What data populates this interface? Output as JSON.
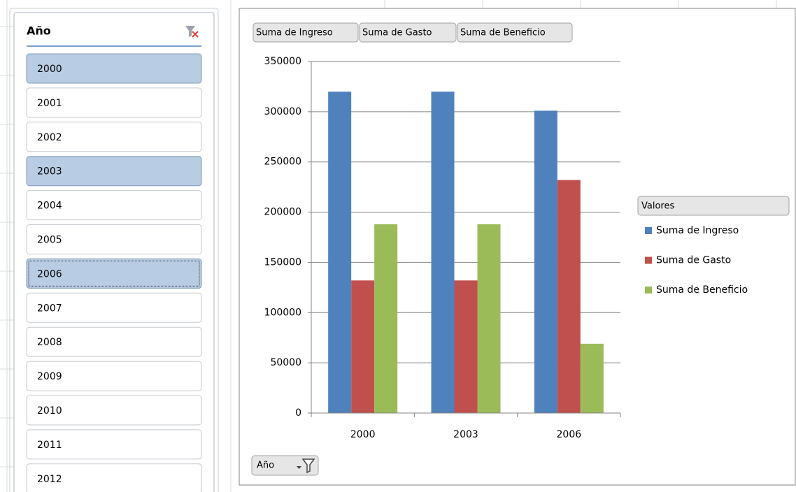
{
  "slicer": {
    "title": "Año",
    "items": [
      {
        "label": "2000",
        "selected": true
      },
      {
        "label": "2001",
        "selected": false
      },
      {
        "label": "2002",
        "selected": false
      },
      {
        "label": "2003",
        "selected": true
      },
      {
        "label": "2004",
        "selected": false
      },
      {
        "label": "2005",
        "selected": false
      },
      {
        "label": "2006",
        "selected": true,
        "focused": true
      },
      {
        "label": "2007",
        "selected": false
      },
      {
        "label": "2008",
        "selected": false
      },
      {
        "label": "2009",
        "selected": false
      },
      {
        "label": "2010",
        "selected": false
      },
      {
        "label": "2011",
        "selected": false
      },
      {
        "label": "2012",
        "selected": false
      }
    ]
  },
  "chart_data": {
    "type": "bar",
    "field_buttons": [
      "Suma de Ingreso",
      "Suma de Gasto",
      "Suma de Beneficio"
    ],
    "categories": [
      "2000",
      "2003",
      "2006"
    ],
    "series": [
      {
        "name": "Suma de Ingreso",
        "color": "#4f81bd",
        "values": [
          320000,
          320000,
          301000
        ]
      },
      {
        "name": "Suma de Gasto",
        "color": "#c0504d",
        "values": [
          132000,
          132000,
          232000
        ]
      },
      {
        "name": "Suma de Beneficio",
        "color": "#9bbb59",
        "values": [
          188000,
          188000,
          69000
        ]
      }
    ],
    "ylim": [
      0,
      350000
    ],
    "yticks": [
      0,
      50000,
      100000,
      150000,
      200000,
      250000,
      300000,
      350000
    ],
    "grid": true,
    "legend_title": "Valores",
    "legend_position": "right",
    "axis_field": "Año"
  }
}
